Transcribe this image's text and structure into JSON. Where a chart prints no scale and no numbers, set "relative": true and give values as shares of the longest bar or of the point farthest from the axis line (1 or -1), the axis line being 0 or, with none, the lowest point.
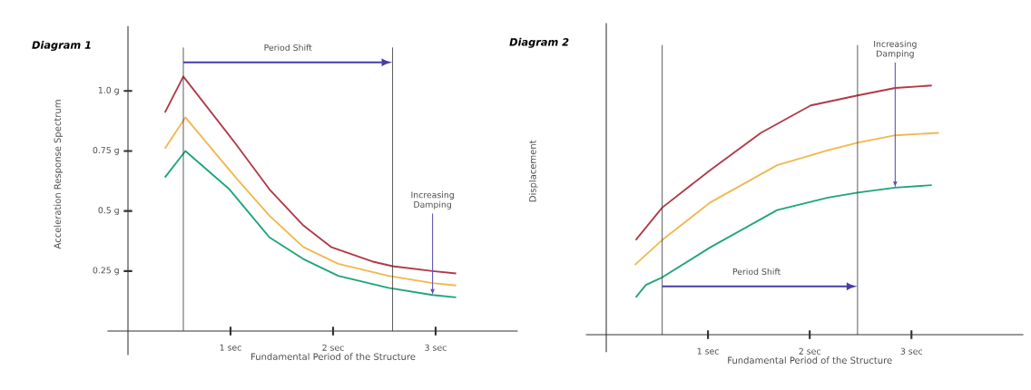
{
  "chart_data": [
    {
      "type": "line",
      "title": "Diagram 1",
      "xlabel": "Fundamental Period of the Structure",
      "ylabel": "Acceleration Response Spectrum",
      "xlim": [
        -0.2,
        3.8
      ],
      "ylim": [
        -0.1,
        1.27
      ],
      "xticks": [
        {
          "value": 1,
          "label": "1 sec"
        },
        {
          "value": 2,
          "label": "2 sec"
        },
        {
          "value": 3,
          "label": "3 sec"
        }
      ],
      "yticks": [
        {
          "value": 0.25,
          "label": "0.25 g"
        },
        {
          "value": 0.5,
          "label": "0.5 g"
        },
        {
          "value": 0.75,
          "label": "0.75 g"
        },
        {
          "value": 1.0,
          "label": "1.0 g"
        }
      ],
      "grid": false,
      "marker": "none",
      "line_style": "solid",
      "series": [
        {
          "color": "#b03a48",
          "x": [
            0.36,
            0.54,
            1.05,
            1.38,
            1.71,
            1.98,
            2.38,
            2.58,
            2.97,
            3.2
          ],
          "values": [
            0.91,
            1.06,
            0.78,
            0.59,
            0.44,
            0.35,
            0.29,
            0.27,
            0.25,
            0.24
          ]
        },
        {
          "color": "#f0b850",
          "x": [
            0.36,
            0.56,
            1.05,
            1.38,
            1.71,
            2.05,
            2.54,
            2.97,
            3.2
          ],
          "values": [
            0.76,
            0.89,
            0.64,
            0.48,
            0.35,
            0.28,
            0.23,
            0.2,
            0.19
          ]
        },
        {
          "color": "#1fa57a",
          "x": [
            0.36,
            0.56,
            0.99,
            1.38,
            1.71,
            2.05,
            2.54,
            2.97,
            3.2
          ],
          "values": [
            0.64,
            0.75,
            0.59,
            0.39,
            0.3,
            0.23,
            0.18,
            0.15,
            0.14
          ]
        }
      ],
      "ref_lines": [
        {
          "axis": "x",
          "value": 0.54,
          "color": "#333333"
        },
        {
          "axis": "x",
          "value": 2.58,
          "color": "#333333"
        }
      ],
      "annotations": [
        "Period Shift",
        {
          "text": "Increasing Damping",
          "x": 2.97,
          "y": 0.15
        }
      ]
    },
    {
      "type": "line",
      "title": "Diagram 2",
      "xlabel": "Fundamental Period of the Structure",
      "ylabel": "Displacement",
      "relative": true,
      "xlim": [
        -0.2,
        4.1
      ],
      "xticks": [
        {
          "value": 1,
          "label": "1 sec"
        },
        {
          "value": 2,
          "label": "2 sec"
        },
        {
          "value": 3,
          "label": "3 sec"
        }
      ],
      "grid": false,
      "marker": "none",
      "line_style": "solid",
      "series": [
        {
          "color": "#b03a48",
          "x": [
            0.29,
            0.55,
            1.02,
            1.52,
            2.01,
            2.47,
            2.84,
            3.2
          ],
          "values": [
            0.38,
            0.51,
            0.66,
            0.81,
            0.92,
            0.96,
            0.99,
            1.0
          ]
        },
        {
          "color": "#f0b850",
          "x": [
            0.28,
            0.55,
            1.02,
            1.68,
            2.18,
            2.47,
            2.84,
            3.27
          ],
          "values": [
            0.28,
            0.38,
            0.53,
            0.68,
            0.74,
            0.77,
            0.8,
            0.81
          ]
        },
        {
          "color": "#1fa57a",
          "x": [
            0.29,
            0.39,
            0.55,
            1.02,
            1.68,
            2.18,
            2.47,
            2.84,
            3.2
          ],
          "values": [
            0.15,
            0.2,
            0.23,
            0.35,
            0.5,
            0.55,
            0.57,
            0.59,
            0.6
          ]
        }
      ],
      "ref_lines": [
        {
          "axis": "x",
          "value": 0.55,
          "color": "#333333"
        },
        {
          "axis": "x",
          "value": 2.47,
          "color": "#333333"
        }
      ],
      "annotations": [
        "Period Shift",
        {
          "text": "Increasing Damping",
          "x": 2.84,
          "y": 0.59
        }
      ]
    }
  ]
}
